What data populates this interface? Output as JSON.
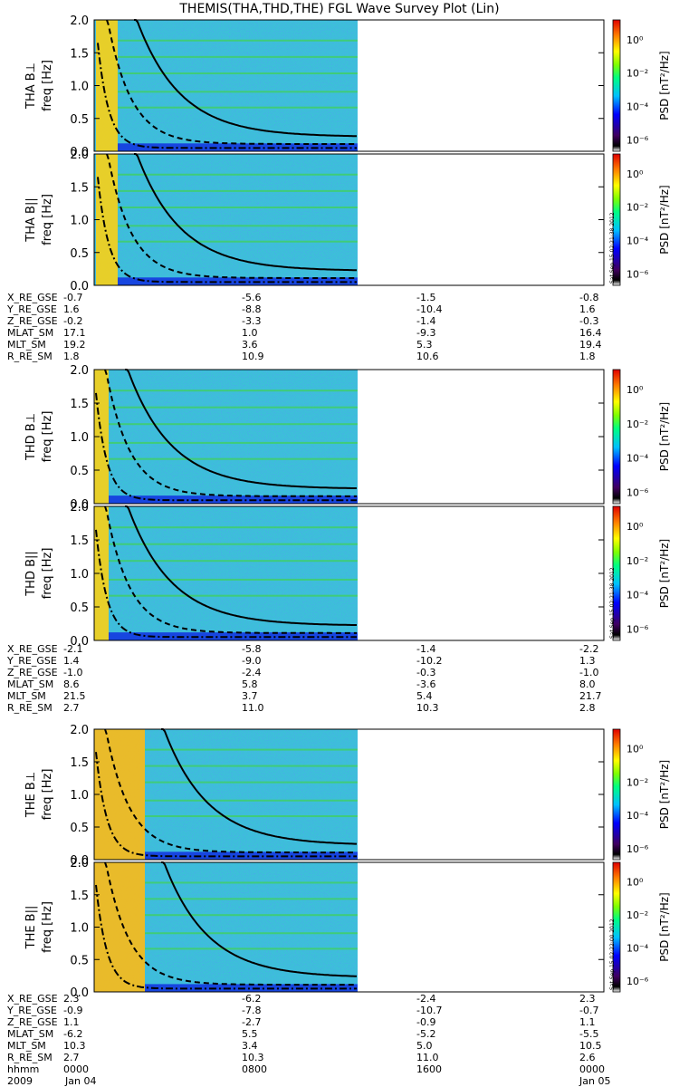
{
  "title": "THEMIS(THA,THD,THE) FGL Wave Survey Plot (Lin)",
  "colors": {
    "background_spectrum": "#3cc0d8",
    "noise": "#2050ff",
    "hot": "#f0d020",
    "green_band": "#40d060",
    "curve": "#000000"
  },
  "chart_data": [
    {
      "type": "heatmap",
      "panel": "THA B⊥",
      "ylabel": "THA B⊥",
      "yunit": "freq [Hz]",
      "ylim": [
        0,
        2.0
      ],
      "yticks": [
        "0.0",
        "0.5",
        "1.0",
        "1.5",
        "2.0"
      ],
      "colorbar_label": "PSD [nT²/Hz]",
      "colorbar_ticks": [
        "10⁰",
        "10⁻²",
        "10⁻⁴",
        "10⁻⁶"
      ],
      "stamp": ""
    },
    {
      "type": "heatmap",
      "panel": "THA B∥",
      "ylabel": "THA B||",
      "yunit": "freq [Hz]",
      "ylim": [
        0,
        2.0
      ],
      "yticks": [
        "0.0",
        "0.5",
        "1.0",
        "1.5",
        "2.0"
      ],
      "colorbar_label": "PSD [nT²/Hz]",
      "colorbar_ticks": [
        "10⁰",
        "10⁻²",
        "10⁻⁴",
        "10⁻⁶"
      ],
      "stamp": "Sat Sep 15 02:21:38 2012"
    },
    {
      "type": "heatmap",
      "panel": "THD B⊥",
      "ylabel": "THD B⊥",
      "yunit": "freq [Hz]",
      "ylim": [
        0,
        2.0
      ],
      "yticks": [
        "0.0",
        "0.5",
        "1.0",
        "1.5",
        "2.0"
      ],
      "colorbar_label": "PSD [nT²/Hz]",
      "colorbar_ticks": [
        "10⁰",
        "10⁻²",
        "10⁻⁴",
        "10⁻⁶"
      ],
      "stamp": ""
    },
    {
      "type": "heatmap",
      "panel": "THD B∥",
      "ylabel": "THD B||",
      "yunit": "freq [Hz]",
      "ylim": [
        0,
        2.0
      ],
      "yticks": [
        "0.0",
        "0.5",
        "1.0",
        "1.5",
        "2.0"
      ],
      "colorbar_label": "PSD [nT²/Hz]",
      "colorbar_ticks": [
        "10⁰",
        "10⁻²",
        "10⁻⁴",
        "10⁻⁶"
      ],
      "stamp": "Sat Sep 15 02:21:38 2012"
    },
    {
      "type": "heatmap",
      "panel": "THE B⊥",
      "ylabel": "THE B⊥",
      "yunit": "freq [Hz]",
      "ylim": [
        0,
        2.0
      ],
      "yticks": [
        "0.0",
        "0.5",
        "1.0",
        "1.5",
        "2.0"
      ],
      "colorbar_label": "PSD [nT²/Hz]",
      "colorbar_ticks": [
        "10⁰",
        "10⁻²",
        "10⁻⁴",
        "10⁻⁶"
      ],
      "stamp": ""
    },
    {
      "type": "heatmap",
      "panel": "THE B∥",
      "ylabel": "THE B||",
      "yunit": "freq [Hz]",
      "ylim": [
        0,
        2.0
      ],
      "yticks": [
        "0.0",
        "0.5",
        "1.0",
        "1.5",
        "2.0"
      ],
      "colorbar_label": "PSD [nT²/Hz]",
      "colorbar_ticks": [
        "10⁰",
        "10⁻²",
        "10⁻⁴",
        "10⁻⁶"
      ],
      "stamp": "Sat Sep 15 02:22:00 2012"
    }
  ],
  "ephemeris": [
    {
      "rows": [
        {
          "label": "X_RE_GSE",
          "values": [
            "-0.7",
            "-5.6",
            "-1.5",
            "-0.8"
          ]
        },
        {
          "label": "Y_RE_GSE",
          "values": [
            "1.6",
            "-8.8",
            "-10.4",
            "1.6"
          ]
        },
        {
          "label": "Z_RE_GSE",
          "values": [
            "-0.2",
            "-3.3",
            "-1.4",
            "-0.3"
          ]
        },
        {
          "label": "MLAT_SM",
          "values": [
            "17.1",
            "1.0",
            "-9.3",
            "16.4"
          ]
        },
        {
          "label": "MLT_SM",
          "values": [
            "19.2",
            "3.6",
            "5.3",
            "19.4"
          ]
        },
        {
          "label": "R_RE_SM",
          "values": [
            "1.8",
            "10.9",
            "10.6",
            "1.8"
          ]
        }
      ]
    },
    {
      "rows": [
        {
          "label": "X_RE_GSE",
          "values": [
            "-2.1",
            "-5.8",
            "-1.4",
            "-2.2"
          ]
        },
        {
          "label": "Y_RE_GSE",
          "values": [
            "1.4",
            "-9.0",
            "-10.2",
            "1.3"
          ]
        },
        {
          "label": "Z_RE_GSE",
          "values": [
            "-1.0",
            "-2.4",
            "-0.3",
            "-1.0"
          ]
        },
        {
          "label": "MLAT_SM",
          "values": [
            "8.6",
            "5.8",
            "-3.6",
            "8.0"
          ]
        },
        {
          "label": "MLT_SM",
          "values": [
            "21.5",
            "3.7",
            "5.4",
            "21.7"
          ]
        },
        {
          "label": "R_RE_SM",
          "values": [
            "2.7",
            "11.0",
            "10.3",
            "2.8"
          ]
        }
      ]
    },
    {
      "rows": [
        {
          "label": "X_RE_GSE",
          "values": [
            "2.3",
            "-6.2",
            "-2.4",
            "2.3"
          ]
        },
        {
          "label": "Y_RE_GSE",
          "values": [
            "-0.9",
            "-7.8",
            "-10.7",
            "-0.7"
          ]
        },
        {
          "label": "Z_RE_GSE",
          "values": [
            "1.1",
            "-2.7",
            "-0.9",
            "1.1"
          ]
        },
        {
          "label": "MLAT_SM",
          "values": [
            "-6.2",
            "5.5",
            "-5.2",
            "-5.5"
          ]
        },
        {
          "label": "MLT_SM",
          "values": [
            "10.3",
            "3.4",
            "5.0",
            "10.5"
          ]
        },
        {
          "label": "R_RE_SM",
          "values": [
            "2.7",
            "10.3",
            "11.0",
            "2.6"
          ]
        },
        {
          "label": "hhmm",
          "values": [
            "0000",
            "0800",
            "1600",
            "0000"
          ]
        }
      ],
      "date_row": {
        "year": "2009",
        "start": "Jan 04",
        "end": "Jan 05"
      }
    }
  ]
}
